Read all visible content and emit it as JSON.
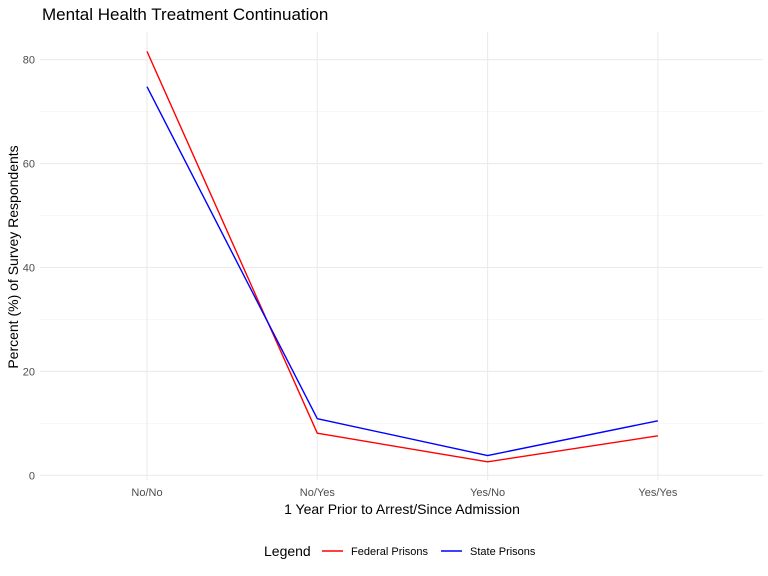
{
  "chart_data": {
    "type": "line",
    "title": "Mental Health Treatment Continuation",
    "xlabel": "1 Year Prior to Arrest/Since Admission",
    "ylabel": "Percent (%) of Survey Respondents",
    "categories": [
      "No/No",
      "No/Yes",
      "Yes/No",
      "Yes/Yes"
    ],
    "ylim": [
      0,
      86
    ],
    "yticks": [
      0,
      20,
      40,
      60,
      80
    ],
    "grid": true,
    "legend": {
      "title": "Legend",
      "position": "bottom"
    },
    "series": [
      {
        "name": "Federal Prisons",
        "color": "#ff0000",
        "values": [
          81.6,
          8.1,
          2.6,
          7.6
        ]
      },
      {
        "name": "State Prisons",
        "color": "#0000ff",
        "values": [
          74.8,
          10.9,
          3.8,
          10.5
        ]
      }
    ]
  }
}
